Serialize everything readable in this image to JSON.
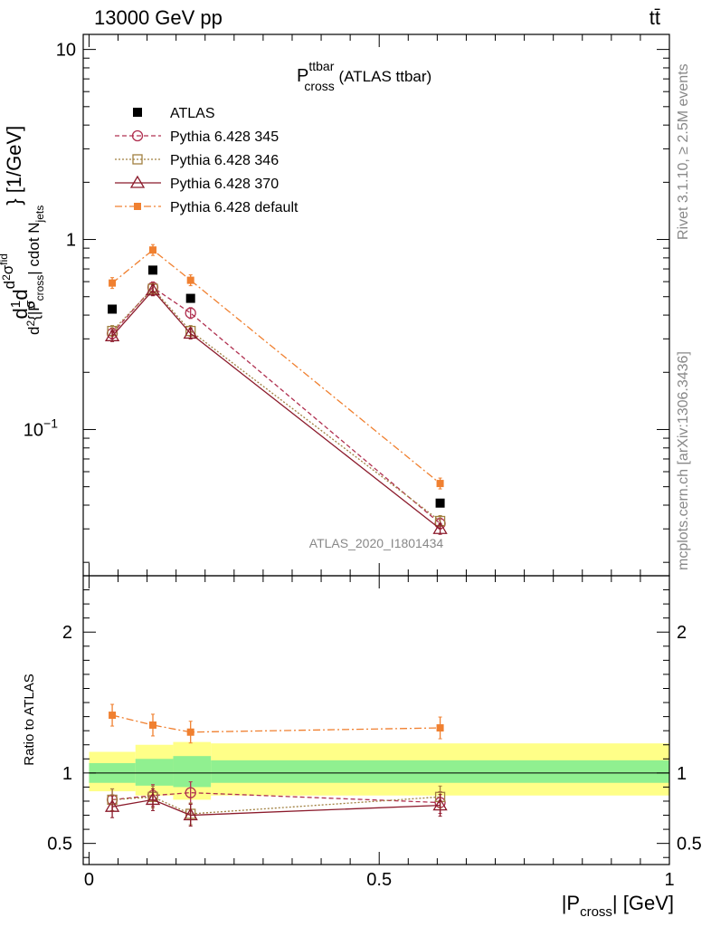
{
  "header": {
    "left": "13000 GeV pp",
    "right": "tt̄",
    "side_top": "Rivet 3.1.10, ≥ 2.5M events",
    "side_bottom": "mcplots.cern.ch [arXiv:1306.3436]",
    "watermark": "ATLAS_2020_I1801434"
  },
  "chart_data": [
    {
      "type": "line",
      "title_main": "P",
      "title_sup": "ttbar",
      "title_sub": "cross",
      "title_rest": " (ATLAS ttbar)",
      "ylabel": "d 1/σ d²σ^fid / d²{|P_cross| cdot N_jets} [1/GeV]",
      "ylabel_parts": {
        "a": "d",
        "b": "1",
        "c": "σ",
        "d": "d",
        "e": "d",
        "f": "d",
        "g": "2",
        "h": "σ",
        "i": "fid",
        "j": "d",
        "k": "2",
        "l": "{|P",
        "m": "cross",
        "n": "| cdot N",
        "o": "jets",
        "p": "} [1/GeV]"
      },
      "yscale": "log",
      "ylim": [
        0.017,
        12
      ],
      "y_ticks": [
        {
          "v": 0.1,
          "label": "10",
          "exp": "−1"
        },
        {
          "v": 1,
          "label": "1"
        },
        {
          "v": 10,
          "label": "10"
        }
      ],
      "xlim": [
        -0.01,
        1.0
      ],
      "x": [
        0.04,
        0.11,
        0.175,
        0.605
      ],
      "series": [
        {
          "name": "ATLAS",
          "color": "#000000",
          "marker": "square-filled",
          "values": [
            0.43,
            0.69,
            0.49,
            0.041
          ]
        },
        {
          "name": "Pythia 6.428 345",
          "color": "#b03050",
          "marker": "circle-open",
          "dash": "5,3",
          "values": [
            0.32,
            0.56,
            0.41,
            0.032
          ]
        },
        {
          "name": "Pythia 6.428 346",
          "color": "#a08040",
          "marker": "square-open",
          "dash": "2,2",
          "values": [
            0.33,
            0.55,
            0.33,
            0.033
          ]
        },
        {
          "name": "Pythia 6.428 370",
          "color": "#8b1a2b",
          "marker": "triangle-open",
          "dash": "",
          "values": [
            0.31,
            0.54,
            0.32,
            0.03
          ]
        },
        {
          "name": "Pythia 6.428 default",
          "color": "#f08030",
          "marker": "square-filled-small",
          "dash": "8,3,2,3",
          "values": [
            0.59,
            0.88,
            0.61,
            0.052
          ]
        }
      ],
      "legend_placement": "top-left"
    },
    {
      "type": "line",
      "ylabel": "Ratio to ATLAS",
      "ylim": [
        0.35,
        2.4
      ],
      "y_ticks": [
        {
          "v": 0.5,
          "label": "0.5"
        },
        {
          "v": 1,
          "label": "1"
        },
        {
          "v": 2,
          "label": "2"
        }
      ],
      "xlabel_parts": {
        "a": "|P",
        "b": "cross",
        "c": "| [GeV]"
      },
      "x_ticks": [
        {
          "v": 0,
          "label": "0"
        },
        {
          "v": 0.5,
          "label": "0.5"
        },
        {
          "v": 1,
          "label": "1"
        }
      ],
      "bands": [
        {
          "x0": 0.0,
          "x1": 0.08,
          "inner": [
            0.93,
            1.07
          ],
          "outer": [
            0.87,
            1.15
          ]
        },
        {
          "x0": 0.08,
          "x1": 0.145,
          "inner": [
            0.91,
            1.1
          ],
          "outer": [
            0.84,
            1.2
          ]
        },
        {
          "x0": 0.145,
          "x1": 0.21,
          "inner": [
            0.9,
            1.12
          ],
          "outer": [
            0.81,
            1.22
          ]
        },
        {
          "x0": 0.21,
          "x1": 1.0,
          "inner": [
            0.93,
            1.09
          ],
          "outer": [
            0.84,
            1.21
          ]
        }
      ],
      "series": [
        {
          "name": "Pythia 6.428 345",
          "color": "#b03050",
          "marker": "circle-open",
          "dash": "5,3",
          "values": [
            0.81,
            0.84,
            0.86,
            0.79
          ]
        },
        {
          "name": "Pythia 6.428 346",
          "color": "#a08040",
          "marker": "square-open",
          "dash": "2,2",
          "values": [
            0.81,
            0.83,
            0.71,
            0.83
          ]
        },
        {
          "name": "Pythia 6.428 370",
          "color": "#8b1a2b",
          "marker": "triangle-open",
          "dash": "",
          "values": [
            0.76,
            0.81,
            0.7,
            0.77
          ]
        },
        {
          "name": "Pythia 6.428 default",
          "color": "#f08030",
          "marker": "square-filled-small",
          "dash": "8,3,2,3",
          "values": [
            1.41,
            1.34,
            1.29,
            1.32
          ]
        }
      ]
    }
  ]
}
